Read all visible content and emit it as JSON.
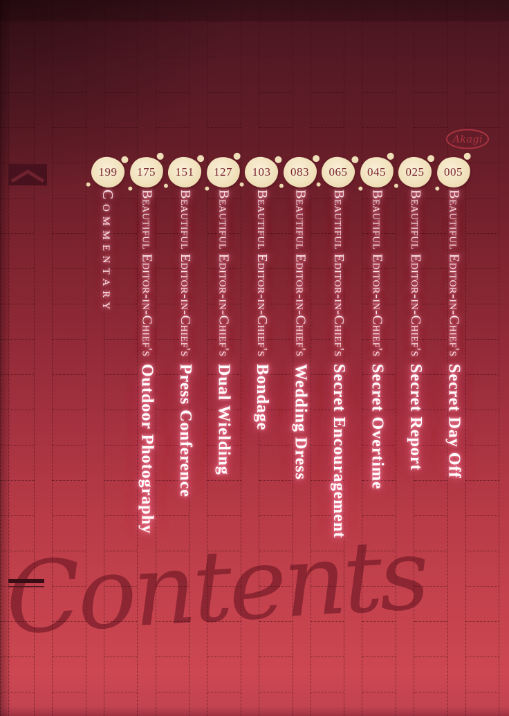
{
  "page": {
    "watermark": "Contents",
    "logo_text": "Akagi"
  },
  "columns": [
    {
      "page_number": "199",
      "series_prefix": "",
      "title": "Commentary"
    },
    {
      "page_number": "175",
      "series_prefix": "Beautiful Editor-in-Chief's",
      "title": "Outdoor Photography"
    },
    {
      "page_number": "151",
      "series_prefix": "Beautiful Editor-in-Chief's",
      "title": "Press Conference"
    },
    {
      "page_number": "127",
      "series_prefix": "Beautiful Editor-in-Chief's",
      "title": "Dual Wielding"
    },
    {
      "page_number": "103",
      "series_prefix": "Beautiful Editor-in-Chief's",
      "title": "Bondage"
    },
    {
      "page_number": "083",
      "series_prefix": "Beautiful Editor-in-Chief's",
      "title": "Wedding Dress"
    },
    {
      "page_number": "065",
      "series_prefix": "Beautiful Editor-in-Chief's",
      "title": "Secret Encouragement"
    },
    {
      "page_number": "045",
      "series_prefix": "Beautiful Editor-in-Chief's",
      "title": "Secret Overtime"
    },
    {
      "page_number": "025",
      "series_prefix": "Beautiful Editor-in-Chief's",
      "title": "Secret Report"
    },
    {
      "page_number": "005",
      "series_prefix": "Beautiful Editor-in-Chief's",
      "title": "Secret Day Off"
    }
  ],
  "colors": {
    "background_top": "#3e131c",
    "background_bottom": "#c84651",
    "badge_cream": "#f1e2bd",
    "badge_number": "#772530",
    "glow_pink": "#ff8fa8",
    "watermark_red": "#5e101e",
    "grid_line": "#2e070e"
  }
}
